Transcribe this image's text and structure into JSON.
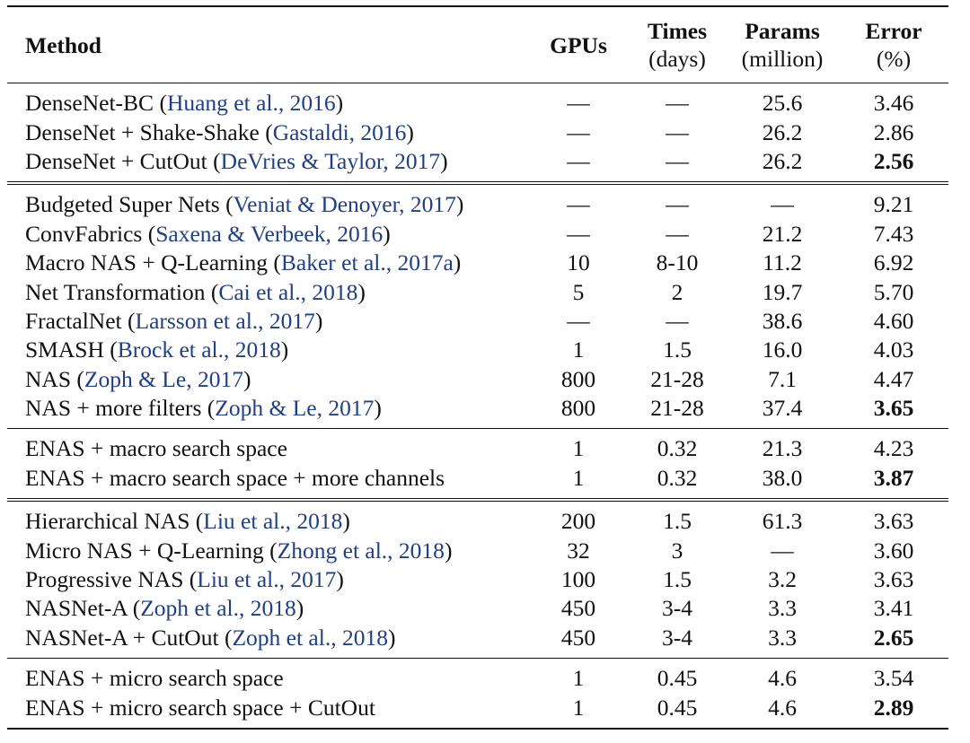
{
  "header": {
    "method": "Method",
    "gpus": "GPUs",
    "times_top": "Times",
    "times_bottom": "(days)",
    "params_top": "Params",
    "params_bottom": "(million)",
    "error_top": "Error",
    "error_bottom": "(%)"
  },
  "colors": {
    "citation": "#1f3f86",
    "text": "#111111"
  },
  "groups": [
    {
      "separator": "single",
      "rows": [
        {
          "name": "DenseNet-BC",
          "cite": "Huang et al., 2016",
          "gpus": "—",
          "times": "—",
          "params": "25.6",
          "error": "3.46",
          "best": false
        },
        {
          "name": "DenseNet + Shake-Shake",
          "cite": "Gastaldi, 2016",
          "gpus": "—",
          "times": "—",
          "params": "26.2",
          "error": "2.86",
          "best": false
        },
        {
          "name": "DenseNet + CutOut",
          "cite": "DeVries & Taylor, 2017",
          "gpus": "—",
          "times": "—",
          "params": "26.2",
          "error": "2.56",
          "best": true
        }
      ]
    },
    {
      "separator": "double",
      "rows": [
        {
          "name": "Budgeted Super Nets",
          "cite": "Veniat & Denoyer, 2017",
          "gpus": "—",
          "times": "—",
          "params": "—",
          "error": "9.21",
          "best": false
        },
        {
          "name": "ConvFabrics",
          "cite": "Saxena & Verbeek, 2016",
          "gpus": "—",
          "times": "—",
          "params": "21.2",
          "error": "7.43",
          "best": false
        },
        {
          "name": "Macro NAS + Q-Learning",
          "cite": "Baker et al., 2017a",
          "gpus": "10",
          "times": "8-10",
          "params": "11.2",
          "error": "6.92",
          "best": false
        },
        {
          "name": "Net Transformation",
          "cite": "Cai et al., 2018",
          "gpus": "5",
          "times": "2",
          "params": "19.7",
          "error": "5.70",
          "best": false
        },
        {
          "name": "FractalNet",
          "cite": "Larsson et al., 2017",
          "gpus": "—",
          "times": "—",
          "params": "38.6",
          "error": "4.60",
          "best": false
        },
        {
          "name": "SMASH",
          "cite": "Brock et al., 2018",
          "gpus": "1",
          "times": "1.5",
          "params": "16.0",
          "error": "4.03",
          "best": false
        },
        {
          "name": "NAS",
          "cite": "Zoph & Le, 2017",
          "gpus": "800",
          "times": "21-28",
          "params": "7.1",
          "error": "4.47",
          "best": false
        },
        {
          "name": "NAS + more filters",
          "cite": "Zoph & Le, 2017",
          "gpus": "800",
          "times": "21-28",
          "params": "37.4",
          "error": "3.65",
          "best": true
        }
      ]
    },
    {
      "separator": "single",
      "rows": [
        {
          "name": "ENAS + macro search space",
          "cite": "",
          "gpus": "1",
          "times": "0.32",
          "params": "21.3",
          "error": "4.23",
          "best": false
        },
        {
          "name": "ENAS + macro search space + more channels",
          "cite": "",
          "gpus": "1",
          "times": "0.32",
          "params": "38.0",
          "error": "3.87",
          "best": true
        }
      ]
    },
    {
      "separator": "double",
      "rows": [
        {
          "name": "Hierarchical NAS",
          "cite": "Liu et al., 2018",
          "gpus": "200",
          "times": "1.5",
          "params": "61.3",
          "error": "3.63",
          "best": false
        },
        {
          "name": "Micro NAS + Q-Learning",
          "cite": "Zhong et al., 2018",
          "gpus": "32",
          "times": "3",
          "params": "—",
          "error": "3.60",
          "best": false
        },
        {
          "name": "Progressive NAS",
          "cite": "Liu et al., 2017",
          "gpus": "100",
          "times": "1.5",
          "params": "3.2",
          "error": "3.63",
          "best": false
        },
        {
          "name": "NASNet-A",
          "cite": "Zoph et al., 2018",
          "gpus": "450",
          "times": "3-4",
          "params": "3.3",
          "error": "3.41",
          "best": false
        },
        {
          "name": "NASNet-A + CutOut",
          "cite": "Zoph et al., 2018",
          "gpus": "450",
          "times": "3-4",
          "params": "3.3",
          "error": "2.65",
          "best": true
        }
      ]
    },
    {
      "separator": "single",
      "rows": [
        {
          "name": "ENAS + micro search space",
          "cite": "",
          "gpus": "1",
          "times": "0.45",
          "params": "4.6",
          "error": "3.54",
          "best": false
        },
        {
          "name": "ENAS + micro search space + CutOut",
          "cite": "",
          "gpus": "1",
          "times": "0.45",
          "params": "4.6",
          "error": "2.89",
          "best": true
        }
      ]
    }
  ]
}
